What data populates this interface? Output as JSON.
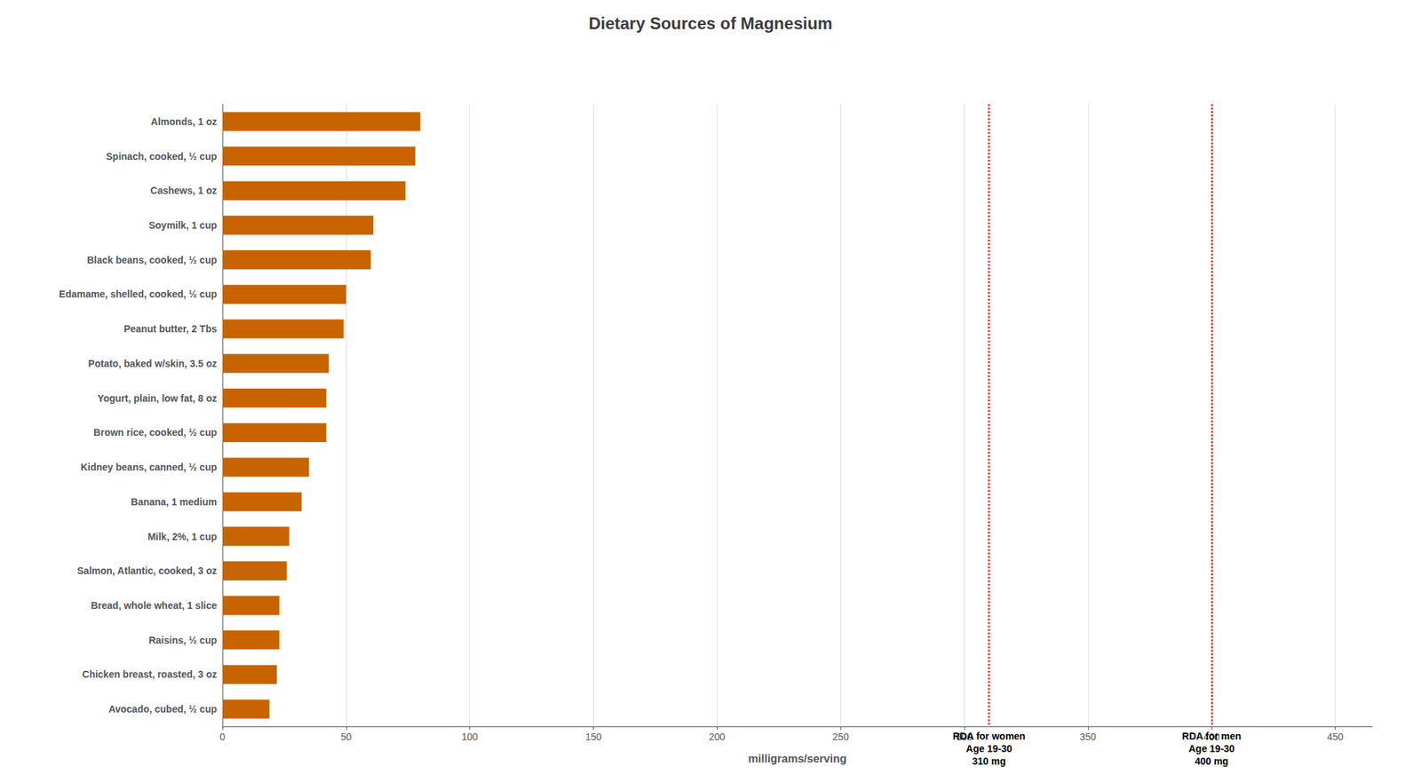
{
  "chart_data": {
    "type": "bar",
    "orientation": "horizontal",
    "title": "Dietary Sources of Magnesium",
    "categories": [
      "Almonds, 1 oz",
      "Spinach, cooked, ½ cup",
      "Cashews, 1 oz",
      "Soymilk, 1 cup",
      "Black beans, cooked, ½ cup",
      "Edamame, shelled, cooked, ½ cup",
      "Peanut butter, 2 Tbs",
      "Potato, baked w/skin, 3.5 oz",
      "Yogurt, plain, low fat, 8 oz",
      "Brown rice, cooked, ½ cup",
      "Kidney beans, canned, ½ cup",
      "Banana, 1 medium",
      "Milk, 2%, 1 cup",
      "Salmon, Atlantic, cooked, 3 oz",
      "Bread, whole wheat, 1 slice",
      "Raisins, ½ cup",
      "Chicken breast, roasted, 3 oz",
      "Avocado, cubed, ½ cup"
    ],
    "values": [
      80,
      78,
      74,
      61,
      60,
      50,
      49,
      43,
      42,
      42,
      35,
      32,
      27,
      26,
      23,
      23,
      22,
      19
    ],
    "color": "#C86400",
    "xlabel": "milligrams/serving",
    "xlim": [
      0,
      465
    ],
    "xticks": [
      0,
      50,
      100,
      150,
      200,
      250,
      300,
      350,
      400,
      450
    ],
    "grid": true,
    "annotations": [
      {
        "x": 310,
        "text": "RDA for women\nAge 19-30\n310 mg",
        "color": "#FF0000",
        "line_style": "dotted"
      },
      {
        "x": 400,
        "text": "RDA for men\nAge 19-30\n400 mg",
        "color": "#FF0000",
        "line_style": "dotted"
      }
    ]
  }
}
